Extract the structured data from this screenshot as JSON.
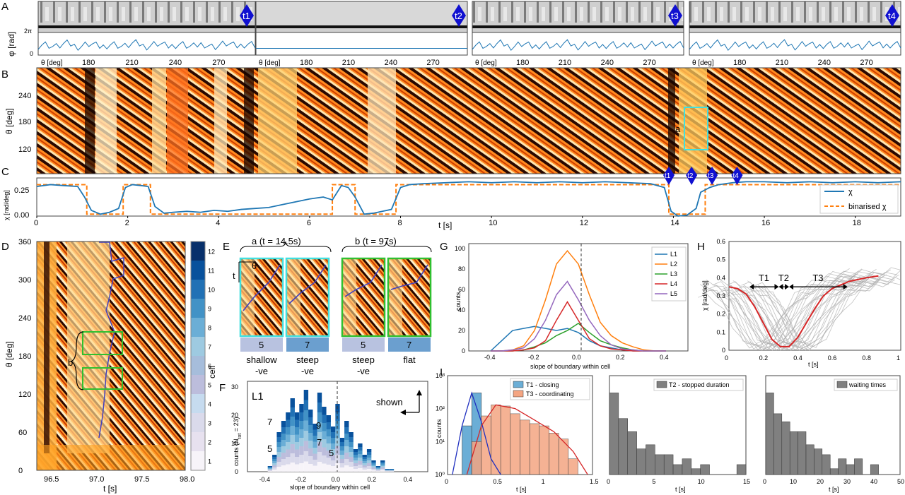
{
  "panel_letters": [
    "A",
    "B",
    "C",
    "D",
    "E",
    "F",
    "G",
    "H",
    "I"
  ],
  "colors": {
    "blue": "#1f77b4",
    "orange": "#ff7f0e",
    "green": "#2ca02c",
    "red": "#d62728",
    "purple": "#9467bd",
    "marker": "#1010d0",
    "hist_blue": "#6baed6",
    "hist_orange": "#f4a582",
    "gray": "#808080",
    "cyan": "#40e0e0",
    "frame_green": "#30c030"
  },
  "panelA": {
    "ylabel": "φ [rad]",
    "yticks": [
      "2π",
      "0"
    ],
    "xlabel": "θ [deg]",
    "xticks": [
      "180",
      "210",
      "240",
      "270"
    ],
    "markers": [
      "t1",
      "t2",
      "t3",
      "t4"
    ]
  },
  "panelB": {
    "ylabel": "θ [deg]",
    "yticks": [
      "240",
      "180",
      "120"
    ],
    "annotation": "a"
  },
  "panelC": {
    "ylabel": "χ [rad/deg]",
    "yticks": [
      "0.25",
      "0.00"
    ],
    "xlabel": "t [s]",
    "xticks": [
      "0",
      "2",
      "4",
      "6",
      "8",
      "10",
      "12",
      "14",
      "16",
      "18"
    ],
    "markers": [
      "t1",
      "t2",
      "t3",
      "t4"
    ],
    "legend": [
      "χ",
      "binarised χ"
    ]
  },
  "panelD": {
    "ylabel": "θ [deg]",
    "yticks": [
      "360",
      "300",
      "240",
      "180",
      "120",
      "60",
      "0"
    ],
    "xlabel": "t [s]",
    "xticks": [
      "96.5",
      "97.0",
      "97.5",
      "98.0"
    ],
    "colorbar_label": "cell",
    "colorbar_ticks": [
      "12",
      "11",
      "10",
      "9",
      "8",
      "7",
      "6",
      "5",
      "4",
      "3",
      "2",
      "1"
    ],
    "annotation": "b"
  },
  "panelE": {
    "group_a": "a (t = 14.5s)",
    "group_b": "b (t = 97s)",
    "axis_theta": "θ",
    "axis_t": "t",
    "cells": [
      {
        "num": "5",
        "label1": "shallow",
        "label2": "-ve"
      },
      {
        "num": "7",
        "label1": "steep",
        "label2": "-ve"
      },
      {
        "num": "5",
        "label1": "steep",
        "label2": "-ve"
      },
      {
        "num": "7",
        "label1": "flat",
        "label2": ""
      }
    ]
  },
  "panelF": {
    "title": "L1",
    "ylabel": "counts (N",
    "ylabel_sub": "tot",
    "ylabel_tail": " = 23)",
    "xlabel": "slope of boundary within cell",
    "xticks": [
      "-0.4",
      "-0.2",
      "0.0",
      "0.2",
      "0.4"
    ],
    "yticks": [
      "0",
      "10",
      "20",
      "30"
    ],
    "annotations": [
      "7",
      "9",
      "5",
      "7",
      "5"
    ],
    "shown_label": "shown"
  },
  "panelH": {
    "ylabel": "χ [rad/deg]",
    "xlabel": "t [s]",
    "yticks": [
      "0",
      "0.1",
      "0.2",
      "0.3",
      "0.4",
      "0.5",
      "0.6"
    ],
    "xticks": [
      "0",
      "0.2",
      "0.4",
      "0.6",
      "0.8",
      "1"
    ],
    "phases": [
      "T1",
      "T2",
      "T3"
    ]
  },
  "panelI": {
    "ylabel": "counts",
    "sub1": {
      "xlabel": "t [s]",
      "xticks": [
        "0",
        "0.5",
        "1",
        "1.5"
      ],
      "yticks": [
        "10⁰",
        "10¹",
        "10²",
        "10³"
      ],
      "legend": [
        "T1 - closing",
        "T3 - coordinating"
      ]
    },
    "sub2": {
      "xlabel": "t [s]",
      "xticks": [
        "0",
        "5",
        "10",
        "15"
      ],
      "legend": [
        "T2 - stopped duration"
      ]
    },
    "sub3": {
      "xlabel": "t [s]",
      "xticks": [
        "0",
        "10",
        "20",
        "30",
        "40",
        "50"
      ],
      "legend": [
        "waiting times"
      ]
    }
  },
  "chart_data": [
    {
      "panel": "C",
      "type": "line",
      "xlabel": "t [s]",
      "ylabel": "χ [rad/deg]",
      "xlim": [
        0,
        19
      ],
      "ylim": [
        0,
        0.4
      ],
      "series": [
        {
          "name": "χ",
          "x": [
            0,
            0.3,
            0.6,
            0.9,
            1.05,
            1.2,
            1.4,
            1.6,
            1.8,
            1.95,
            2.1,
            2.3,
            2.45,
            2.6,
            2.8,
            3.0,
            3.3,
            3.6,
            3.9,
            4.2,
            4.5,
            4.8,
            5.1,
            5.4,
            5.7,
            6.0,
            6.3,
            6.5,
            6.7,
            6.85,
            7.0,
            7.2,
            7.4,
            7.6,
            7.8,
            8.0,
            8.2,
            8.5,
            9,
            9.5,
            10,
            10.5,
            11,
            11.5,
            12,
            12.5,
            13,
            13.5,
            13.8,
            13.95,
            14.1,
            14.3,
            14.5,
            14.6,
            14.8,
            15.0,
            15.3,
            15.6,
            16,
            16.5,
            17,
            17.5,
            18,
            18.5,
            19
          ],
          "y": [
            0.31,
            0.33,
            0.32,
            0.31,
            0.2,
            0.06,
            0.02,
            0.04,
            0.08,
            0.3,
            0.33,
            0.32,
            0.31,
            0.1,
            0.03,
            0.04,
            0.05,
            0.04,
            0.06,
            0.05,
            0.07,
            0.08,
            0.09,
            0.12,
            0.15,
            0.18,
            0.2,
            0.17,
            0.32,
            0.3,
            0.2,
            0.02,
            0.03,
            0.05,
            0.07,
            0.3,
            0.33,
            0.34,
            0.35,
            0.36,
            0.35,
            0.36,
            0.35,
            0.36,
            0.35,
            0.36,
            0.35,
            0.34,
            0.3,
            0.05,
            0.0,
            0.01,
            0.08,
            0.25,
            0.3,
            0.33,
            0.35,
            0.36,
            0.36,
            0.35,
            0.36,
            0.35,
            0.36,
            0.35,
            0.36
          ]
        },
        {
          "name": "binarised χ",
          "x": [
            0,
            1.1,
            1.1,
            1.9,
            1.9,
            2.5,
            2.5,
            6.5,
            6.5,
            7.0,
            7.0,
            7.9,
            7.9,
            13.9,
            13.9,
            14.7,
            14.7,
            19
          ],
          "y": [
            0.33,
            0.33,
            0.02,
            0.02,
            0.33,
            0.33,
            0.02,
            0.02,
            0.33,
            0.33,
            0.02,
            0.02,
            0.33,
            0.33,
            0.02,
            0.02,
            0.33,
            0.33
          ]
        }
      ]
    },
    {
      "panel": "G",
      "type": "line",
      "xlabel": "slope of boundary within cell",
      "ylabel": "counts",
      "xlim": [
        -0.5,
        0.5
      ],
      "ylim": [
        0,
        105
      ],
      "x": [
        -0.4,
        -0.35,
        -0.3,
        -0.25,
        -0.2,
        -0.15,
        -0.1,
        -0.05,
        0.0,
        0.05,
        0.1,
        0.15,
        0.2,
        0.25,
        0.3,
        0.35,
        0.4
      ],
      "series": [
        {
          "name": "L1",
          "values": [
            0,
            10,
            20,
            22,
            24,
            22,
            20,
            22,
            18,
            10,
            5,
            3,
            1,
            0,
            0,
            0,
            0
          ]
        },
        {
          "name": "L2",
          "values": [
            0,
            0,
            1,
            5,
            20,
            50,
            85,
            98,
            85,
            55,
            28,
            15,
            8,
            4,
            1,
            0,
            0
          ]
        },
        {
          "name": "L3",
          "values": [
            0,
            0,
            0,
            1,
            4,
            8,
            15,
            20,
            27,
            18,
            10,
            6,
            3,
            1,
            0,
            0,
            0
          ]
        },
        {
          "name": "L4",
          "values": [
            0,
            0,
            0,
            1,
            3,
            10,
            30,
            48,
            30,
            12,
            5,
            2,
            1,
            0,
            0,
            0,
            0
          ]
        },
        {
          "name": "L5",
          "values": [
            0,
            0,
            1,
            3,
            12,
            30,
            55,
            68,
            50,
            30,
            15,
            6,
            2,
            1,
            0,
            0,
            0
          ]
        }
      ],
      "xticks": [
        "-0.4",
        "-0.2",
        "0.0",
        "0.2",
        "0.4"
      ],
      "yticks": [
        "0",
        "20",
        "40",
        "60",
        "80",
        "100"
      ]
    },
    {
      "panel": "F",
      "type": "bar",
      "stacked": true,
      "xlabel": "slope of boundary within cell",
      "x": [
        -0.375,
        -0.35,
        -0.325,
        -0.3,
        -0.275,
        -0.25,
        -0.225,
        -0.2,
        -0.175,
        -0.15,
        -0.125,
        -0.1,
        -0.075,
        -0.05,
        -0.025,
        0.0,
        0.025,
        0.05,
        0.075,
        0.1,
        0.125,
        0.15,
        0.175,
        0.2,
        0.225,
        0.25,
        0.275,
        0.3
      ],
      "values": [
        2,
        6,
        14,
        18,
        21,
        26,
        21,
        24,
        29,
        22,
        17,
        28,
        23,
        20,
        16,
        24,
        12,
        18,
        14,
        8,
        10,
        6,
        8,
        4,
        2,
        4,
        1,
        1
      ],
      "xlim": [
        -0.5,
        0.5
      ],
      "ylim": [
        0,
        32
      ]
    },
    {
      "panel": "H",
      "type": "line",
      "xlabel": "t [s]",
      "ylabel": "χ [rad/deg]",
      "xlim": [
        0,
        1
      ],
      "ylim": [
        0,
        0.6
      ],
      "series": [
        {
          "name": "mean",
          "x": [
            0,
            0.05,
            0.1,
            0.15,
            0.2,
            0.25,
            0.3,
            0.35,
            0.4,
            0.45,
            0.5,
            0.55,
            0.6,
            0.65,
            0.7,
            0.75,
            0.8,
            0.87
          ],
          "y": [
            0.35,
            0.34,
            0.31,
            0.24,
            0.15,
            0.06,
            0.02,
            0.02,
            0.07,
            0.15,
            0.23,
            0.3,
            0.34,
            0.36,
            0.38,
            0.39,
            0.4,
            0.41
          ]
        }
      ]
    },
    {
      "panel": "I1",
      "type": "bar",
      "log_y": true,
      "series": [
        {
          "name": "T1 - closing",
          "x": [
            0.1,
            0.2,
            0.3
          ],
          "values": [
            1,
            30,
            300
          ]
        },
        {
          "name": "T3 - coordinating",
          "x": [
            0.3,
            0.4,
            0.5,
            0.6,
            0.7,
            0.8,
            0.9,
            1.0,
            1.1,
            1.2,
            1.3
          ],
          "values": [
            10,
            60,
            130,
            120,
            70,
            45,
            35,
            30,
            18,
            12,
            3
          ]
        }
      ],
      "xlim": [
        0,
        1.5
      ]
    },
    {
      "panel": "I2",
      "type": "bar",
      "log_y": true,
      "name": "T2 - stopped duration",
      "x": [
        0.5,
        1.5,
        2.5,
        3.5,
        4.5,
        5.5,
        6.5,
        7.5,
        8.5,
        9.5,
        10.5,
        11.5,
        12.5,
        13.5,
        14.5
      ],
      "values": [
        300,
        50,
        20,
        6,
        8,
        4,
        4,
        2,
        3,
        1.5,
        2,
        0.9,
        0.9,
        0.9,
        2
      ],
      "xlim": [
        0,
        15
      ]
    },
    {
      "panel": "I3",
      "type": "bar",
      "log_y": true,
      "name": "waiting times",
      "x": [
        1.5,
        4.5,
        7.5,
        10.5,
        13.5,
        16.5,
        19.5,
        22.5,
        25.5,
        28.5,
        31.5,
        34.5,
        37.5,
        40.5,
        43.5
      ],
      "values": [
        300,
        70,
        40,
        20,
        20,
        8,
        6,
        4,
        1.5,
        3,
        2,
        3,
        1,
        2,
        0.9
      ],
      "xlim": [
        0,
        50
      ]
    }
  ]
}
